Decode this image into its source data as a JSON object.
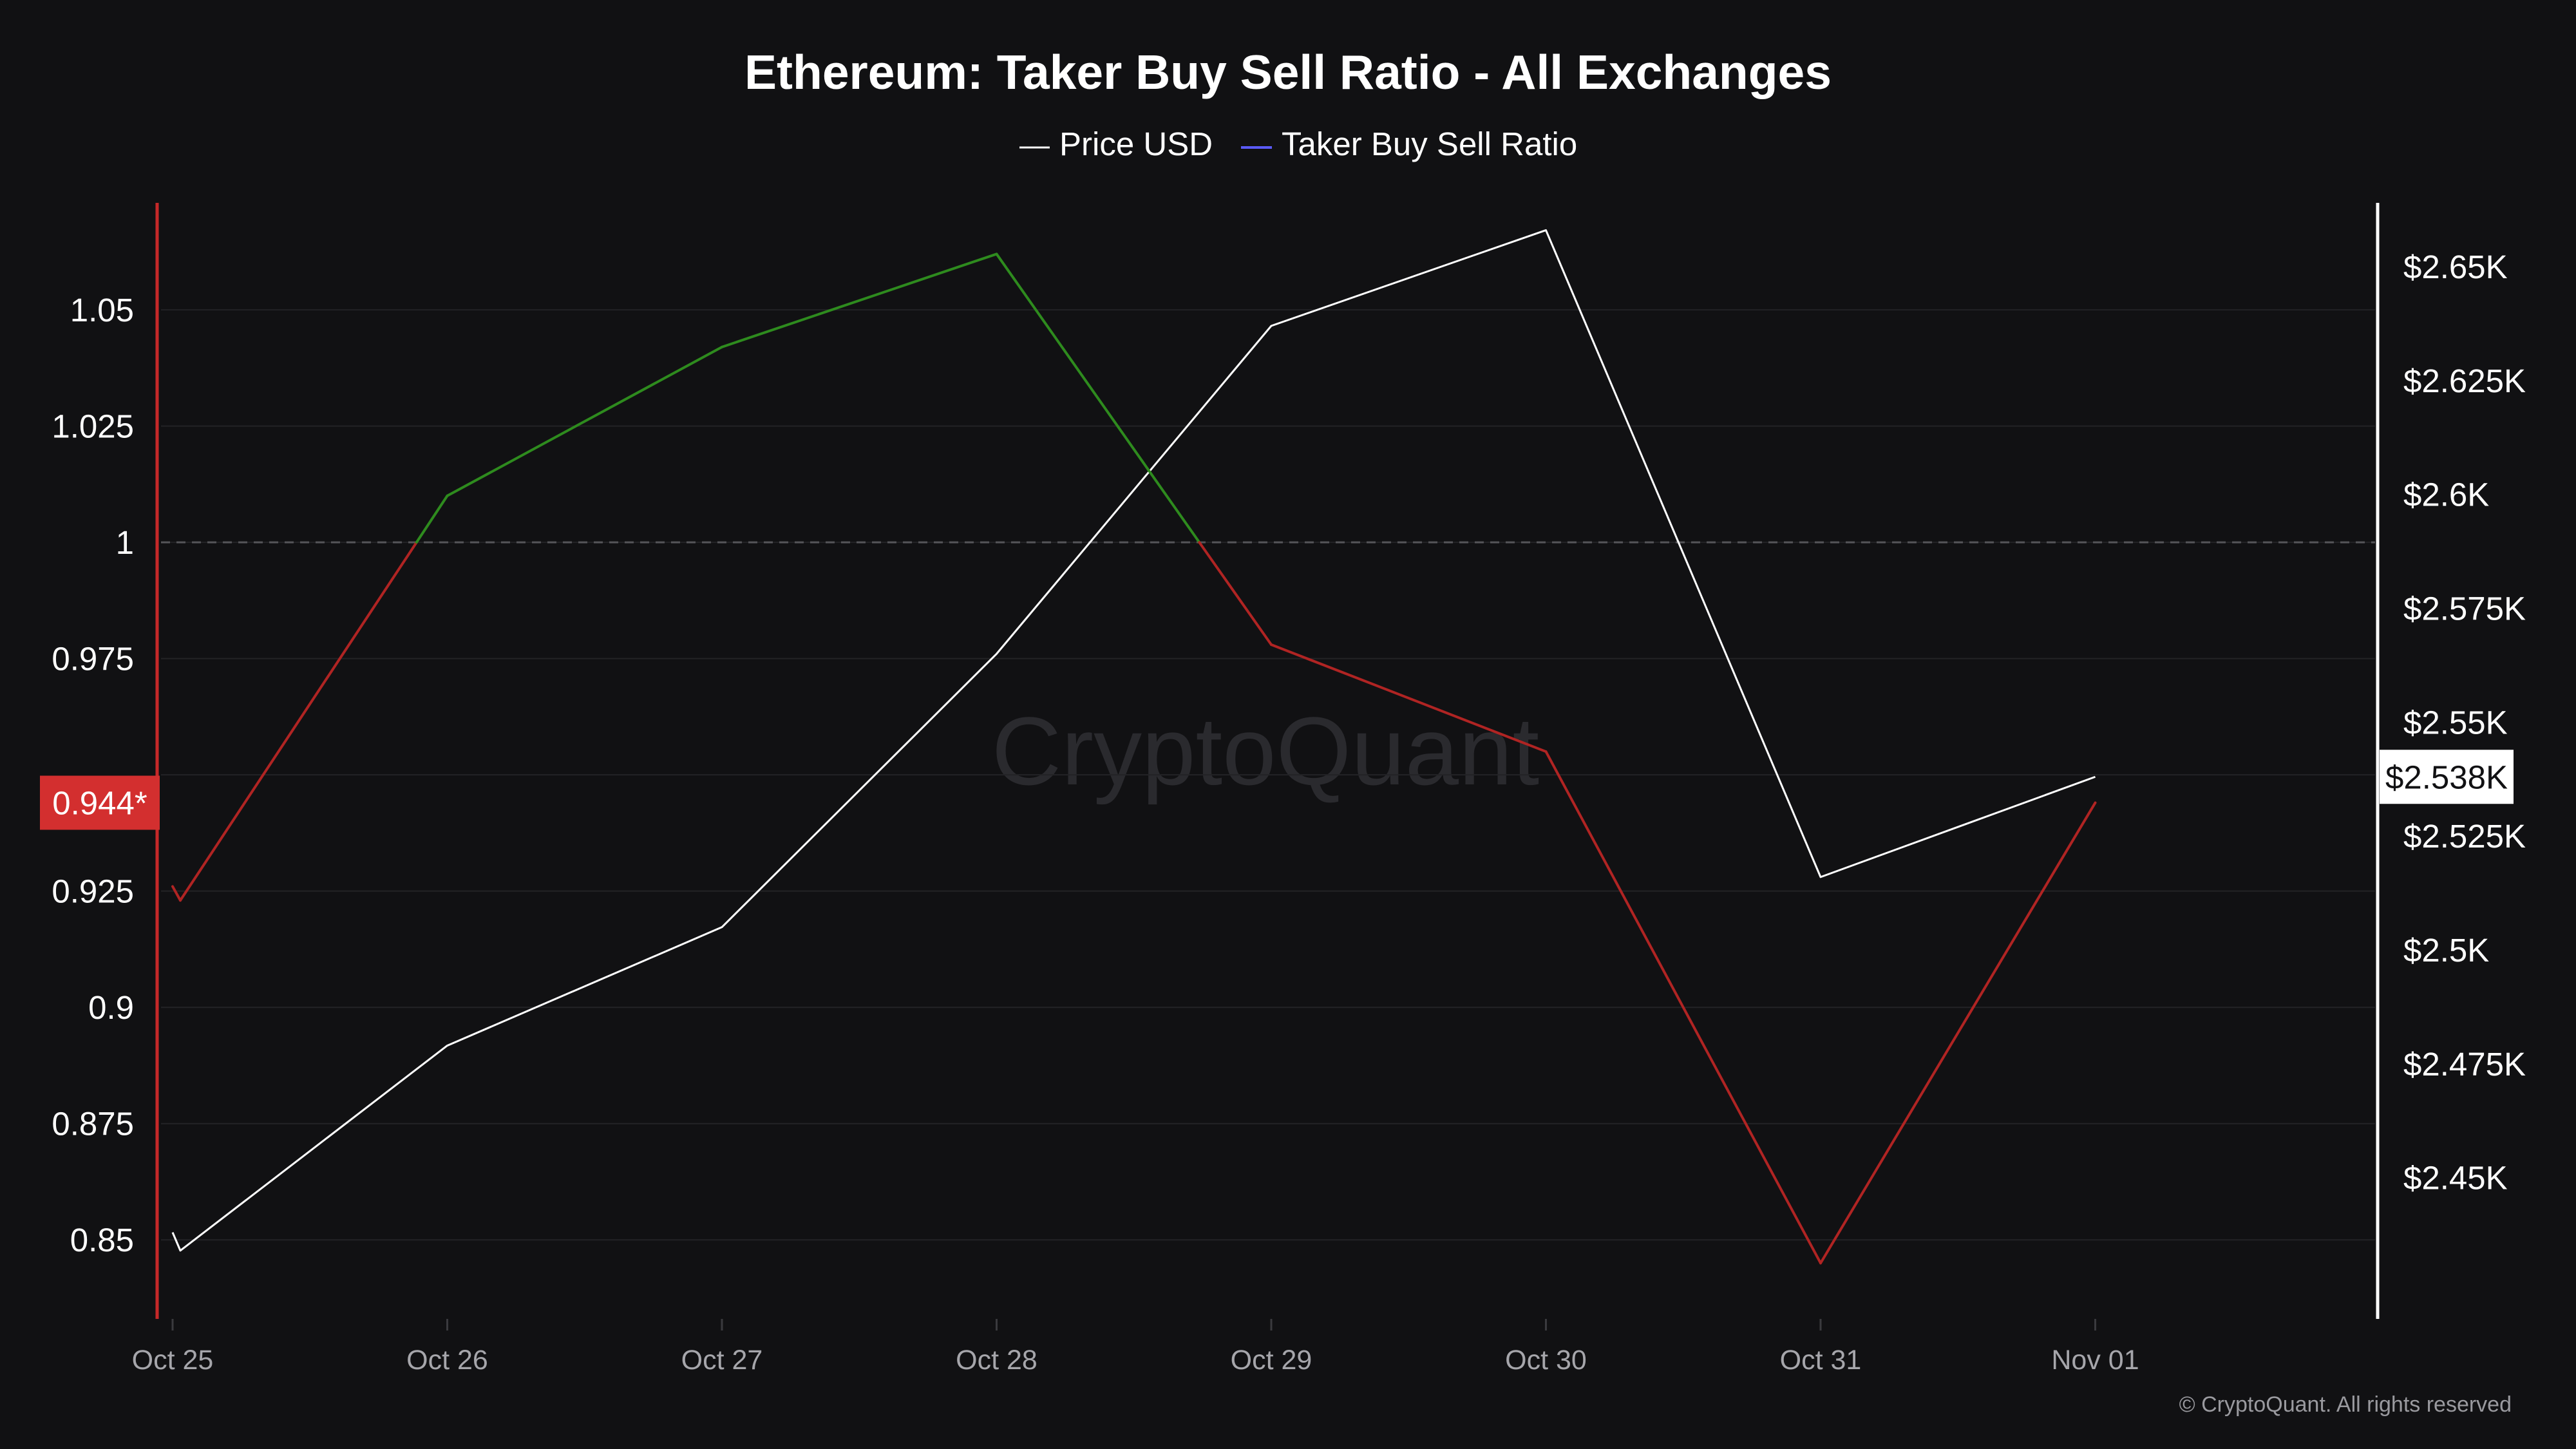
{
  "chart_data": {
    "type": "line",
    "title": "Ethereum: Taker Buy Sell Ratio - All Exchanges",
    "legend_placement": "top-center",
    "grid": true,
    "x": [
      "Oct 25",
      "Oct 26",
      "Oct 27",
      "Oct 28",
      "Oct 29",
      "Oct 30",
      "Oct 31",
      "Nov 01"
    ],
    "series": [
      {
        "name": "Price USD",
        "axis": "right",
        "color": "#ffffff",
        "points": [
          {
            "x": "Oct 25",
            "y": 2438
          },
          {
            "x": "Oct 25",
            "y": 2434
          },
          {
            "x": "Oct 26",
            "y": 2479
          },
          {
            "x": "Oct 27",
            "y": 2505
          },
          {
            "x": "Oct 28",
            "y": 2565
          },
          {
            "x": "Oct 29",
            "y": 2637
          },
          {
            "x": "Oct 30",
            "y": 2658
          },
          {
            "x": "Oct 31",
            "y": 2516
          },
          {
            "x": "Nov 01",
            "y": 2538
          }
        ]
      },
      {
        "name": "Taker Buy Sell Ratio",
        "axis": "left",
        "color": "#5b5bff",
        "above_one_color": "#2e8b1e",
        "below_one_color": "#b02423",
        "points": [
          {
            "x": "Oct 25",
            "y": 0.926
          },
          {
            "x": "Oct 25",
            "y": 0.923
          },
          {
            "x": "Oct 26",
            "y": 1.01
          },
          {
            "x": "Oct 27",
            "y": 1.042
          },
          {
            "x": "Oct 28",
            "y": 1.062
          },
          {
            "x": "Oct 29",
            "y": 0.978
          },
          {
            "x": "Oct 30",
            "y": 0.955
          },
          {
            "x": "Oct 31",
            "y": 0.845
          },
          {
            "x": "Nov 01",
            "y": 0.944
          }
        ]
      }
    ],
    "y_left": {
      "ticks": [
        0.85,
        0.875,
        0.9,
        0.925,
        0.975,
        1,
        1.025,
        1.05
      ],
      "tick_labels": [
        "0.85",
        "0.875",
        "0.9",
        "0.925",
        "0.975",
        "1",
        "1.025",
        "1.05"
      ],
      "ylim": [
        0.833,
        1.073
      ],
      "reference_line": 1,
      "current_label": "0.944*",
      "current_value": 0.944,
      "color": "#c62828"
    },
    "y_right": {
      "ticks": [
        2450,
        2475,
        2500,
        2525,
        2550,
        2575,
        2600,
        2625,
        2650
      ],
      "tick_labels": [
        "$2.45K",
        "$2.475K",
        "$2.5K",
        "$2.525K",
        "$2.55K",
        "$2.575K",
        "$2.6K",
        "$2.625K",
        "$2.65K"
      ],
      "ylim": [
        2419,
        2664
      ],
      "current_label": "$2.538K",
      "current_value": 2538,
      "color": "#ffffff"
    },
    "x_ticks": [
      "Oct 25",
      "Oct 26",
      "Oct 27",
      "Oct 28",
      "Oct 29",
      "Oct 30",
      "Oct 31",
      "Nov 01"
    ]
  },
  "watermark": "CryptoQuant",
  "copyright": "© CryptoQuant. All rights reserved"
}
